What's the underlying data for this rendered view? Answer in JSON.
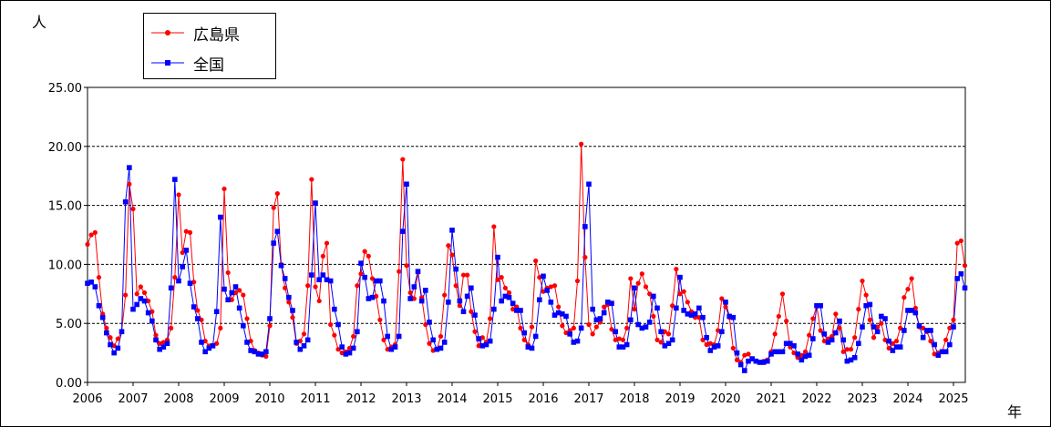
{
  "chart_data": {
    "type": "line",
    "ylabel": "人",
    "xlabel": "年",
    "ylim": [
      0,
      25
    ],
    "yticks": [
      "0.00",
      "5.00",
      "10.00",
      "15.00",
      "20.00",
      "25.00"
    ],
    "xticks": [
      "2006",
      "2007",
      "2008",
      "2009",
      "2010",
      "2011",
      "2012",
      "2013",
      "2014",
      "2015",
      "2016",
      "2017",
      "2018",
      "2019",
      "2020",
      "2021",
      "2022",
      "2023",
      "2024",
      "2025"
    ],
    "x_start": "2006-01",
    "grid": true,
    "legend_position": "top-left",
    "series": [
      {
        "name": "広島県",
        "color": "#ff0000",
        "marker": "circle",
        "values": [
          11.7,
          12.5,
          12.7,
          8.9,
          5.8,
          4.6,
          3.8,
          3.1,
          3.7,
          4.3,
          7.4,
          16.8,
          14.7,
          7.5,
          8.1,
          7.6,
          6.9,
          6.0,
          4.0,
          3.3,
          3.4,
          3.6,
          4.6,
          8.9,
          15.9,
          11.0,
          12.8,
          12.7,
          8.5,
          6.1,
          5.3,
          3.5,
          3.1,
          3.1,
          3.3,
          4.6,
          16.4,
          9.3,
          7.0,
          7.6,
          7.8,
          7.4,
          5.4,
          3.5,
          2.7,
          2.5,
          2.3,
          2.2,
          4.8,
          14.8,
          16.0,
          10.0,
          8.0,
          6.8,
          5.5,
          3.3,
          3.5,
          4.1,
          8.2,
          17.2,
          8.1,
          6.9,
          10.7,
          11.8,
          4.9,
          4.0,
          2.8,
          2.5,
          2.6,
          2.9,
          3.9,
          8.2,
          9.2,
          11.1,
          10.7,
          8.8,
          7.3,
          5.3,
          3.6,
          2.8,
          3.0,
          3.2,
          9.4,
          18.9,
          9.9,
          7.6,
          7.1,
          9.3,
          7.2,
          4.9,
          3.3,
          2.7,
          2.8,
          3.9,
          7.4,
          11.6,
          10.8,
          8.2,
          6.5,
          9.1,
          9.1,
          6.0,
          4.3,
          3.1,
          3.8,
          3.4,
          5.4,
          13.2,
          8.7,
          8.9,
          8.0,
          7.6,
          6.2,
          6.4,
          4.6,
          3.6,
          3.2,
          4.7,
          10.3,
          8.9,
          7.7,
          8.0,
          8.1,
          8.2,
          6.4,
          4.8,
          4.2,
          4.4,
          4.6,
          8.6,
          20.2,
          10.6,
          4.9,
          4.1,
          4.7,
          5.1,
          6.4,
          6.6,
          4.5,
          3.6,
          3.7,
          3.6,
          4.6,
          8.8,
          6.2,
          8.4,
          9.2,
          8.1,
          7.5,
          5.6,
          3.6,
          3.4,
          4.3,
          4.1,
          6.5,
          9.6,
          7.5,
          7.7,
          6.8,
          6.0,
          5.5,
          5.5,
          3.6,
          3.2,
          3.3,
          3.2,
          4.4,
          7.1,
          6.4,
          5.5,
          2.9,
          1.9,
          1.7,
          2.3,
          2.4,
          2.0,
          1.8,
          1.7,
          1.8,
          1.9,
          2.6,
          4.1,
          5.6,
          7.5,
          5.2,
          3.0,
          2.5,
          2.1,
          2.3,
          2.6,
          4.0,
          5.4,
          6.5,
          4.4,
          3.5,
          3.7,
          3.9,
          5.8,
          4.6,
          2.6,
          2.8,
          2.8,
          3.8,
          6.2,
          8.6,
          7.4,
          5.3,
          3.8,
          4.7,
          5.0,
          3.6,
          2.9,
          3.3,
          3.5,
          4.6,
          7.2,
          7.9,
          8.8,
          6.3,
          4.7,
          4.6,
          4.3,
          3.5,
          2.4,
          2.5,
          2.6,
          3.6,
          4.6,
          5.3,
          11.8,
          12.0,
          9.9
        ]
      },
      {
        "name": "全国",
        "color": "#0000ff",
        "marker": "square",
        "values": [
          8.4,
          8.5,
          8.1,
          6.5,
          5.5,
          4.2,
          3.2,
          2.5,
          2.9,
          4.3,
          15.3,
          18.2,
          6.2,
          6.6,
          7.1,
          6.9,
          5.9,
          5.2,
          3.6,
          2.8,
          3.0,
          3.3,
          8.0,
          17.2,
          8.6,
          9.8,
          11.2,
          8.4,
          6.4,
          5.4,
          3.4,
          2.6,
          2.9,
          3.1,
          6.0,
          14.0,
          7.9,
          7.0,
          7.6,
          8.1,
          6.3,
          4.8,
          3.4,
          2.7,
          2.6,
          2.4,
          2.4,
          2.6,
          5.4,
          11.8,
          12.8,
          9.9,
          8.8,
          7.2,
          6.1,
          3.4,
          2.8,
          3.1,
          3.6,
          9.1,
          15.2,
          8.7,
          9.1,
          8.7,
          8.6,
          6.2,
          4.9,
          3.0,
          2.4,
          2.5,
          2.9,
          4.3,
          10.1,
          8.9,
          7.1,
          7.2,
          8.6,
          8.6,
          6.9,
          3.9,
          2.8,
          3.0,
          3.9,
          12.8,
          16.8,
          7.1,
          8.1,
          9.4,
          6.9,
          7.8,
          5.1,
          3.6,
          2.8,
          2.9,
          3.4,
          6.8,
          12.9,
          9.6,
          6.9,
          6.0,
          7.3,
          8.0,
          5.7,
          3.7,
          3.1,
          3.2,
          3.5,
          6.2,
          10.6,
          6.9,
          7.3,
          7.2,
          6.7,
          6.1,
          6.1,
          4.2,
          3.0,
          2.9,
          3.9,
          7.0,
          9.0,
          7.8,
          6.8,
          5.7,
          5.9,
          5.8,
          5.6,
          4.1,
          3.4,
          3.5,
          4.6,
          13.2,
          16.8,
          6.2,
          5.3,
          5.4,
          5.9,
          6.8,
          6.7,
          4.3,
          3.0,
          3.0,
          3.2,
          5.3,
          8.0,
          4.9,
          4.6,
          4.7,
          5.1,
          7.3,
          6.3,
          4.3,
          3.1,
          3.3,
          3.6,
          6.3,
          8.9,
          6.1,
          5.8,
          5.7,
          5.8,
          6.3,
          5.5,
          3.8,
          2.7,
          3.0,
          3.1,
          4.3,
          6.8,
          5.6,
          5.5,
          2.5,
          1.5,
          1.0,
          1.8,
          2.0,
          1.8,
          1.7,
          1.7,
          1.8,
          2.4,
          2.6,
          2.6,
          2.6,
          3.3,
          3.3,
          3.1,
          2.4,
          1.9,
          2.2,
          2.3,
          3.7,
          6.5,
          6.5,
          4.1,
          3.4,
          3.6,
          4.2,
          5.2,
          3.6,
          1.8,
          1.9,
          2.1,
          3.3,
          4.7,
          6.5,
          6.6,
          4.7,
          4.3,
          5.6,
          5.4,
          3.5,
          2.7,
          3.0,
          3.0,
          4.4,
          6.1,
          6.1,
          5.9,
          4.8,
          3.8,
          4.4,
          4.4,
          3.2,
          2.3,
          2.6,
          2.6,
          3.2,
          4.7,
          8.8,
          9.2,
          8.0
        ]
      }
    ]
  }
}
